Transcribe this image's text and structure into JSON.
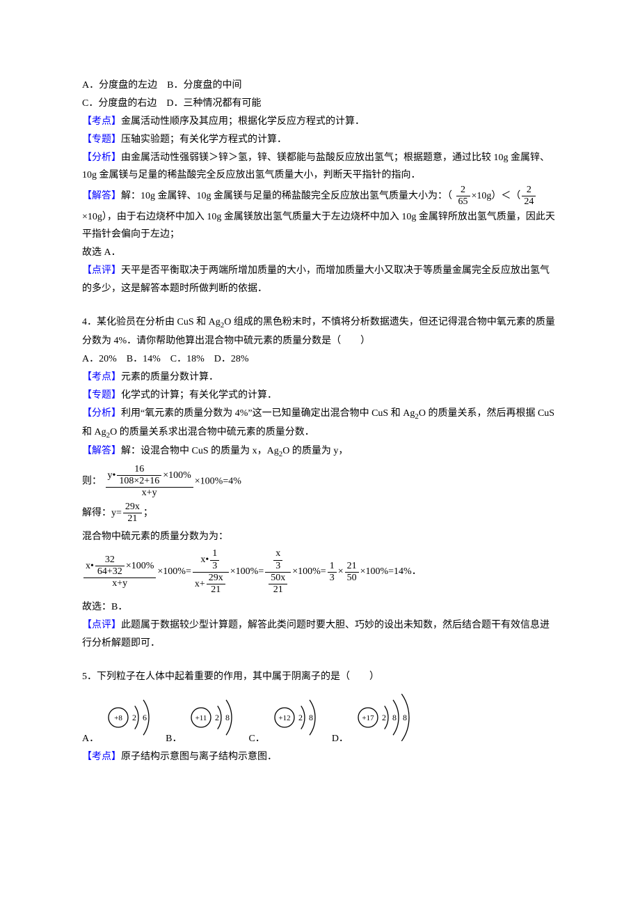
{
  "colors": {
    "body_text": "#000000",
    "accent": "#0000ff",
    "bg": "#ffffff"
  },
  "font": {
    "family": "SimSun",
    "size_pt": 10.5,
    "line_height": 1.85
  },
  "q3": {
    "opts_line1": "A．分度盘的左边　B．分度盘的中间",
    "opts_line2": "C．分度盘的右边　D．三种情况都有可能",
    "kaodian_label": "【考点】",
    "kaodian": "金属活动性顺序及其应用；根据化学反应方程式的计算．",
    "zhuanti_label": "【专题】",
    "zhuanti": "压轴实验题；有关化学方程式的计算．",
    "fenxi_label": "【分析】",
    "fenxi": "由金属活动性强弱镁＞锌＞氢，锌、镁都能与盐酸反应放出氢气；根据题意，通过比较 10g 金属锌、10g 金属镁与足量的稀盐酸完全反应放出氢气质量大小，判断天平指针的指向．",
    "jieda_label": "【解答】",
    "jieda_pre": "解：10g 金属锌、10g 金属镁与足量的稀盐酸完全反应放出氢气质量大小为：（",
    "frac1_num": "2",
    "frac1_den": "65",
    "mid1": "×10g）＜（",
    "frac2_num": "2",
    "frac2_den": "24",
    "jieda_post": "×10g），由于右边烧杯中加入 10g 金属镁放出氢气质量大于左边烧杯中加入 10g 金属锌所放出氢气质量，因此天平指针会偏向于左边；",
    "gu": "故选 A．",
    "dianping_label": "【点评】",
    "dianping": "天平是否平衡取决于两端所增加质量的大小，而增加质量大小又取决于等质量金属完全反应放出氢气的多少，这是解答本题时所做判断的依据．"
  },
  "q4": {
    "stem1": "4．某化验员在分析由 CuS 和 Ag",
    "stem2": "O 组成的黑色粉末时，不慎将分析数据遗失，但还记得混合物中氧元素的质量分数为 4%．请你帮助他算出混合物中硫元素的质量分数是（　　）",
    "opts": "A．20%　B．14%　C．18%　D．28%",
    "kaodian_label": "【考点】",
    "kaodian": "元素的质量分数计算．",
    "zhuanti_label": "【专题】",
    "zhuanti": "化学式的计算；有关化学式的计算．",
    "fenxi_label": "【分析】",
    "fenxi_a": "利用“氧元素的质量分数为 4%”这一已知量确定出混合物中 CuS 和 Ag",
    "fenxi_b": "O 的质量关系，然后再根据 CuS 和 Ag",
    "fenxi_c": "O 的质量关系求出混合物中硫元素的质量分数．",
    "jieda_label": "【解答】",
    "jieda_lead_a": "解：设混合物中 CuS 的质量为 x，Ag",
    "jieda_lead_b": "O 的质量为 y，",
    "ze": "则：",
    "eq1": {
      "inner_top_lead": "y•",
      "inner_num": "16",
      "inner_den": "108×2+16",
      "inner_top_tail": "×100%",
      "outer_den": "x+y",
      "tail": "×100%=4%"
    },
    "jiede": "解得：",
    "yfrac_num": "29x",
    "yfrac_den": "21",
    "yfrac_tail": "；",
    "line_mix": "混合物中硫元素的质量分数为为：",
    "eq2": {
      "t1_num_lead": "x•",
      "t1_num_num": "32",
      "t1_num_den": "64+32",
      "t1_num_tail": "×100%",
      "t1_den": "x+y",
      "t1_tail": "×100%",
      "t2_num_lead": "x•",
      "t2_num_num": "1",
      "t2_num_den": "3",
      "t2_den_lead": "x+",
      "t2_den_num": "29x",
      "t2_den_den": "21",
      "t2_tail": "×100%",
      "t3_num_num": "x",
      "t3_num_den": "3",
      "t3_den_num": "50x",
      "t3_den_den": "21",
      "t3_tail": "×100%",
      "t4a_num": "1",
      "t4a_den": "3",
      "t4b_num": "21",
      "t4b_den": "50",
      "t4_tail": "×100%=14%．"
    },
    "gu": "故选：B．",
    "dianping_label": "【点评】",
    "dianping": "此题属于数据较少型计算题，解答此类问题时要大胆、巧妙的设出未知数，然后结合题干有效信息进行分析解题即可．"
  },
  "q5": {
    "stem": "5．下列粒子在人体中起着重要的作用，其中属于阴离子的是（　　）",
    "options": [
      {
        "label": "A．",
        "center": "+8",
        "shells": [
          "2",
          "6"
        ]
      },
      {
        "label": "B．",
        "center": "+11",
        "shells": [
          "2",
          "8"
        ]
      },
      {
        "label": "C．",
        "center": "+12",
        "shells": [
          "2",
          "8"
        ]
      },
      {
        "label": "D．",
        "center": "+17",
        "shells": [
          "2",
          "8",
          "8"
        ]
      }
    ],
    "kaodian_label": "【考点】",
    "kaodian": "原子结构示意图与离子结构示意图．",
    "svg_style": {
      "circle_r": 14,
      "arc_gap": 15,
      "arc_angle_deg": 70,
      "stroke": "#000000",
      "stroke_width": 1.3,
      "text_fontsize": 12,
      "center_fontsize": 11
    }
  }
}
